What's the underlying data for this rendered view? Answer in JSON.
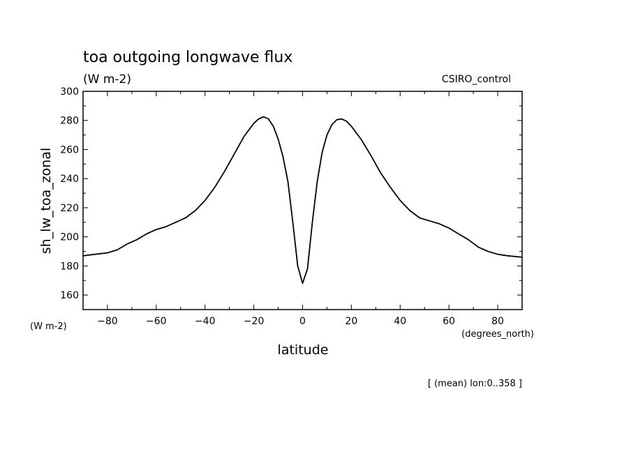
{
  "chart_data": {
    "type": "line",
    "title": "toa outgoing longwave flux",
    "subtitle": "(W m-2)",
    "source_label": "CSIRO_control",
    "ylabel": "sh_lw_toa_zonal",
    "y_units": "(W m-2)",
    "xlabel": "latitude",
    "x_units": "(degrees_north)",
    "footnote": "[ (mean) lon:0..358 ]",
    "xlim": [
      -90,
      90
    ],
    "ylim": [
      150,
      300
    ],
    "x_ticks": [
      -80,
      -60,
      -40,
      -20,
      0,
      20,
      40,
      60,
      80
    ],
    "y_ticks": [
      160,
      180,
      200,
      220,
      240,
      260,
      280,
      300
    ],
    "grid": false,
    "series": [
      {
        "color": "#000000",
        "x": [
          -90,
          -85,
          -80,
          -76,
          -72,
          -68,
          -64,
          -60,
          -56,
          -52,
          -48,
          -44,
          -40,
          -36,
          -32,
          -28,
          -24,
          -20,
          -18,
          -16,
          -14,
          -12,
          -10,
          -8,
          -6,
          -4,
          -2,
          0,
          2,
          4,
          6,
          8,
          10,
          12,
          14,
          16,
          18,
          20,
          24,
          28,
          32,
          36,
          40,
          44,
          48,
          52,
          56,
          60,
          64,
          68,
          72,
          76,
          80,
          84,
          90
        ],
        "y": [
          187,
          188,
          189,
          191,
          195,
          198,
          202,
          205,
          207,
          210,
          213,
          218,
          225,
          234,
          245,
          257,
          269,
          278,
          281,
          282.5,
          281,
          276,
          267,
          255,
          238,
          210,
          180,
          168,
          178,
          210,
          238,
          258,
          270,
          277,
          280.5,
          281,
          279.5,
          276,
          267,
          256,
          244,
          234,
          225,
          218,
          213,
          211,
          209,
          206,
          202,
          198,
          193,
          190,
          188,
          187,
          186
        ]
      }
    ]
  }
}
